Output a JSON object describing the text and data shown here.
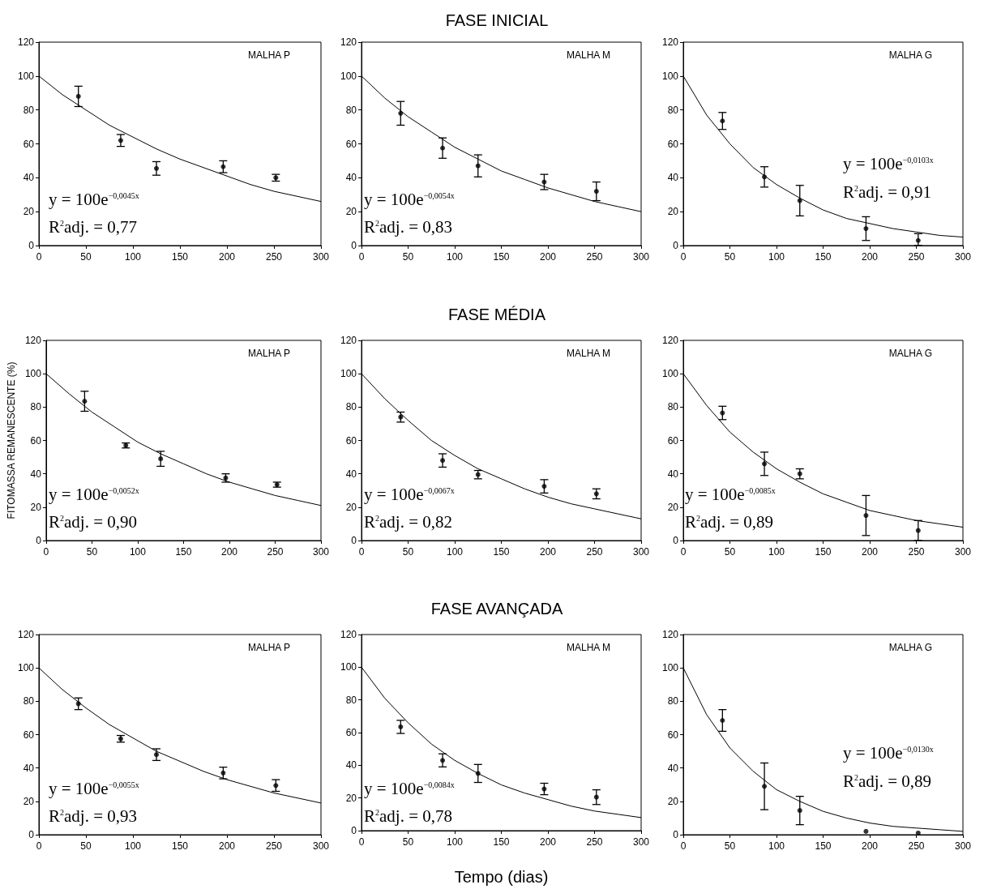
{
  "chart_data": [
    {
      "type": "scatter",
      "xlim": [
        0,
        300
      ],
      "xticks": [
        0,
        50,
        100,
        150,
        200,
        250,
        300
      ],
      "ylim": [
        0,
        120
      ],
      "yticks": [
        0,
        20,
        40,
        60,
        80,
        100,
        120
      ],
      "annotations": [
        "MALHA P",
        "y = 100e$^{−0,0045x}$",
        "R$^{2}$adj. = 0,77"
      ],
      "series": [
        {
          "marker": "circle",
          "color": "#000000",
          "x": [
            42,
            87,
            125,
            196,
            252
          ],
          "values": [
            88,
            62,
            45.5,
            46.5,
            40
          ],
          "errors": [
            6,
            3.5,
            4,
            3.5,
            2
          ]
        },
        {
          "type": "line",
          "marker": "none",
          "line_style": "solid",
          "color": "#000000",
          "x": [
            0,
            25,
            50,
            75,
            100,
            125,
            150,
            175,
            200,
            225,
            250,
            275,
            300
          ],
          "values": [
            100,
            89,
            80,
            71,
            64,
            57,
            51,
            46,
            41,
            36,
            32,
            29,
            26
          ]
        }
      ]
    },
    {
      "type": "scatter",
      "title": "FASE INICIAL",
      "xlim": [
        0,
        300
      ],
      "xticks": [
        0,
        50,
        100,
        150,
        200,
        250,
        300
      ],
      "ylim": [
        0,
        120
      ],
      "yticks": [
        0,
        20,
        40,
        60,
        80,
        100,
        120
      ],
      "annotations": [
        "MALHA M",
        "y = 100e$^{−0,0054x}$",
        "R$^{2}$adj. = 0,83"
      ],
      "series": [
        {
          "marker": "circle",
          "color": "#000000",
          "x": [
            42,
            87,
            125,
            196,
            252
          ],
          "values": [
            78,
            57.5,
            47,
            37.5,
            32
          ],
          "errors": [
            7,
            6,
            6.5,
            4.5,
            5.5
          ]
        },
        {
          "type": "line",
          "marker": "none",
          "line_style": "solid",
          "color": "#000000",
          "x": [
            0,
            25,
            50,
            75,
            100,
            125,
            150,
            175,
            200,
            225,
            250,
            275,
            300
          ],
          "values": [
            100,
            87,
            76,
            67,
            58,
            51,
            44,
            39,
            34,
            30,
            26,
            23,
            20
          ]
        }
      ]
    },
    {
      "type": "scatter",
      "xlim": [
        0,
        300
      ],
      "xticks": [
        0,
        50,
        100,
        150,
        200,
        250,
        300
      ],
      "ylim": [
        0,
        120
      ],
      "yticks": [
        0,
        20,
        40,
        60,
        80,
        100,
        120
      ],
      "annotations": [
        "MALHA G",
        "y = 100e$^{−0,0103x}$",
        "R$^{2}$adj. = 0,91"
      ],
      "series": [
        {
          "marker": "circle",
          "color": "#000000",
          "x": [
            42,
            87,
            125,
            196,
            252
          ],
          "values": [
            73.5,
            40.5,
            26.5,
            10,
            3
          ],
          "errors": [
            5,
            6,
            9,
            7,
            [
              0,
              7
            ]
          ]
        },
        {
          "type": "line",
          "marker": "none",
          "line_style": "solid",
          "color": "#000000",
          "x": [
            0,
            25,
            50,
            75,
            100,
            125,
            150,
            175,
            200,
            225,
            250,
            275,
            300
          ],
          "values": [
            100,
            77,
            60,
            46,
            36,
            28,
            21,
            16,
            13,
            10,
            8,
            6,
            5
          ]
        }
      ]
    },
    {
      "type": "scatter",
      "ylabel": "FITOMASSA REMANESCENTE (%)",
      "xlim": [
        0,
        300
      ],
      "xticks": [
        0,
        50,
        100,
        150,
        200,
        250,
        300
      ],
      "ylim": [
        0,
        120
      ],
      "yticks": [
        0,
        20,
        40,
        60,
        80,
        100,
        120
      ],
      "annotations": [
        "MALHA P",
        "y = 100e$^{−0,0052x}$",
        "R$^{2}$adj. = 0,90"
      ],
      "series": [
        {
          "marker": "circle",
          "color": "#000000",
          "x": [
            42,
            87,
            125,
            196,
            252
          ],
          "values": [
            83.5,
            57,
            49,
            37.5,
            33.5
          ],
          "errors": [
            6,
            1.5,
            4.5,
            2.5,
            1.5
          ]
        },
        {
          "type": "line",
          "marker": "none",
          "line_style": "solid",
          "color": "#000000",
          "x": [
            0,
            25,
            50,
            75,
            100,
            125,
            150,
            175,
            200,
            225,
            250,
            275,
            300
          ],
          "values": [
            100,
            88,
            77,
            68,
            59,
            52,
            46,
            40,
            35,
            31,
            27,
            24,
            21
          ]
        }
      ]
    },
    {
      "type": "scatter",
      "title": "FASE MÉDIA",
      "xlim": [
        0,
        300
      ],
      "xticks": [
        0,
        50,
        100,
        150,
        200,
        250,
        300
      ],
      "ylim": [
        0,
        120
      ],
      "yticks": [
        0,
        20,
        40,
        60,
        80,
        100,
        120
      ],
      "annotations": [
        "MALHA M",
        "y = 100e$^{−0,0067x}$",
        "R$^{2}$adj. = 0,82"
      ],
      "series": [
        {
          "marker": "circle",
          "color": "#000000",
          "x": [
            42,
            87,
            125,
            196,
            252
          ],
          "values": [
            74,
            48,
            39.5,
            32.5,
            28
          ],
          "errors": [
            3,
            4,
            2.5,
            4,
            3
          ]
        },
        {
          "type": "line",
          "marker": "none",
          "line_style": "solid",
          "color": "#000000",
          "x": [
            0,
            25,
            50,
            75,
            100,
            125,
            150,
            175,
            200,
            225,
            250,
            275,
            300
          ],
          "values": [
            100,
            85,
            72,
            60,
            51,
            43,
            37,
            31,
            26,
            22,
            19,
            16,
            13
          ]
        }
      ]
    },
    {
      "type": "scatter",
      "xlim": [
        0,
        300
      ],
      "xticks": [
        0,
        50,
        100,
        150,
        200,
        250,
        300
      ],
      "ylim": [
        0,
        120
      ],
      "yticks": [
        0,
        20,
        40,
        60,
        80,
        100,
        120
      ],
      "annotations": [
        "MALHA G",
        "y = 100e$^{−0,0085x}$",
        "R$^{2}$adj. = 0,89"
      ],
      "series": [
        {
          "marker": "circle",
          "color": "#000000",
          "x": [
            42,
            87,
            125,
            196,
            252
          ],
          "values": [
            76.5,
            46,
            40,
            15,
            6
          ],
          "errors": [
            4,
            7,
            3,
            12,
            6
          ]
        },
        {
          "type": "line",
          "marker": "none",
          "line_style": "solid",
          "color": "#000000",
          "x": [
            0,
            25,
            50,
            75,
            100,
            125,
            150,
            175,
            200,
            225,
            250,
            275,
            300
          ],
          "values": [
            100,
            81,
            65,
            53,
            43,
            35,
            28,
            23,
            18,
            15,
            12,
            10,
            8
          ]
        }
      ]
    },
    {
      "type": "scatter",
      "xlim": [
        0,
        300
      ],
      "xticks": [
        0,
        50,
        100,
        150,
        200,
        250,
        300
      ],
      "ylim": [
        0,
        120
      ],
      "yticks": [
        0,
        20,
        40,
        60,
        80,
        100,
        120
      ],
      "annotations": [
        "MALHA P",
        "y = 100e$^{−0,0055x}$",
        "R$^{2}$adj. = 0,93"
      ],
      "series": [
        {
          "marker": "circle",
          "color": "#000000",
          "x": [
            42,
            87,
            125,
            196,
            252
          ],
          "values": [
            78.5,
            57.5,
            48,
            37,
            29.5
          ],
          "errors": [
            3.5,
            2,
            3.5,
            3.5,
            3.5
          ]
        },
        {
          "type": "line",
          "marker": "none",
          "line_style": "solid",
          "color": "#000000",
          "x": [
            0,
            25,
            50,
            75,
            100,
            125,
            150,
            175,
            200,
            225,
            250,
            275,
            300
          ],
          "values": [
            100,
            87,
            76,
            66,
            58,
            50,
            44,
            38,
            33,
            29,
            25,
            22,
            19
          ]
        }
      ]
    },
    {
      "type": "scatter",
      "title": "FASE AVANÇADA",
      "xlabel": "Tempo (dias)",
      "xlim": [
        0,
        300
      ],
      "xticks": [
        0,
        50,
        100,
        150,
        200,
        250,
        300
      ],
      "ylim": [
        0,
        120
      ],
      "yticks": [
        0,
        20,
        40,
        60,
        80,
        100,
        120
      ],
      "annotations": [
        "MALHA M",
        "y = 100e$^{−0,0084x}$",
        "R$^{2}$adj. = 0,78"
      ],
      "series": [
        {
          "marker": "circle",
          "color": "#000000",
          "x": [
            42,
            87,
            125,
            196,
            252
          ],
          "values": [
            63.5,
            43,
            35,
            25.5,
            20.5
          ],
          "errors": [
            4,
            4,
            5.5,
            3.5,
            4.5
          ]
        },
        {
          "type": "line",
          "marker": "none",
          "line_style": "solid",
          "color": "#000000",
          "x": [
            0,
            25,
            50,
            75,
            100,
            125,
            150,
            175,
            200,
            225,
            250,
            275,
            300
          ],
          "values": [
            100,
            81,
            66,
            53,
            43,
            35,
            28,
            23,
            19,
            15,
            12,
            10,
            8
          ]
        }
      ]
    },
    {
      "type": "scatter",
      "xlim": [
        0,
        300
      ],
      "xticks": [
        0,
        50,
        100,
        150,
        200,
        250,
        300
      ],
      "ylim": [
        0,
        120
      ],
      "yticks": [
        0,
        20,
        40,
        60,
        80,
        100,
        120
      ],
      "annotations": [
        "MALHA G",
        "y = 100e$^{−0,0130x}$",
        "R$^{2}$adj. = 0,89"
      ],
      "series": [
        {
          "marker": "circle",
          "color": "#000000",
          "x": [
            42,
            87,
            125,
            196,
            252
          ],
          "values": [
            68.5,
            29,
            14.5,
            2,
            1
          ],
          "errors": [
            6.5,
            14,
            8.5,
            null,
            null
          ]
        },
        {
          "type": "line",
          "marker": "none",
          "line_style": "solid",
          "color": "#000000",
          "x": [
            0,
            25,
            50,
            75,
            100,
            125,
            150,
            175,
            200,
            225,
            250,
            275,
            300
          ],
          "values": [
            100,
            72,
            52,
            38,
            27,
            20,
            14,
            10,
            7,
            5,
            4,
            3,
            2
          ]
        }
      ]
    }
  ]
}
